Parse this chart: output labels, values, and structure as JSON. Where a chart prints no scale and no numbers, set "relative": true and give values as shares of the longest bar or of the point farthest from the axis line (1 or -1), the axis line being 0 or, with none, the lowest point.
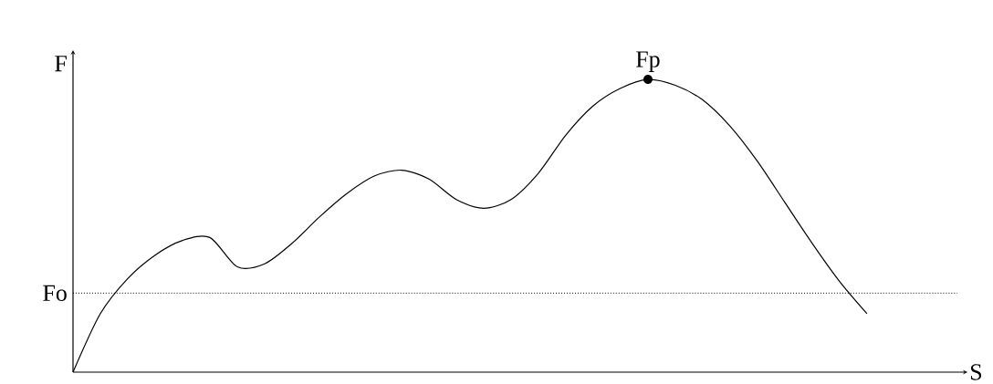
{
  "chart_data": {
    "type": "line",
    "relative": true,
    "xlabel": "S",
    "ylabel": "F",
    "color": "#000000",
    "categories": [
      null,
      null,
      null,
      null,
      null,
      null,
      null,
      null,
      null,
      null,
      null,
      null,
      null,
      null,
      null,
      null,
      null,
      null,
      null,
      null,
      null,
      null,
      null,
      null,
      null,
      null,
      null,
      null,
      null,
      null
    ],
    "values": [
      0,
      0.2,
      0.32,
      0.4,
      0.45,
      0.46,
      0.36,
      0.37,
      0.44,
      0.53,
      0.61,
      0.67,
      0.69,
      0.66,
      0.59,
      0.56,
      0.59,
      0.68,
      0.81,
      0.91,
      0.97,
      1.0,
      0.98,
      0.93,
      0.84,
      0.72,
      0.58,
      0.44,
      0.31,
      0.2
    ],
    "ref_lines": [
      {
        "axis": "y",
        "value": 0.27,
        "label": "Fo",
        "line_style": "dotted"
      }
    ],
    "annotations": [
      {
        "text": "Fp",
        "y": 1.0
      }
    ]
  }
}
